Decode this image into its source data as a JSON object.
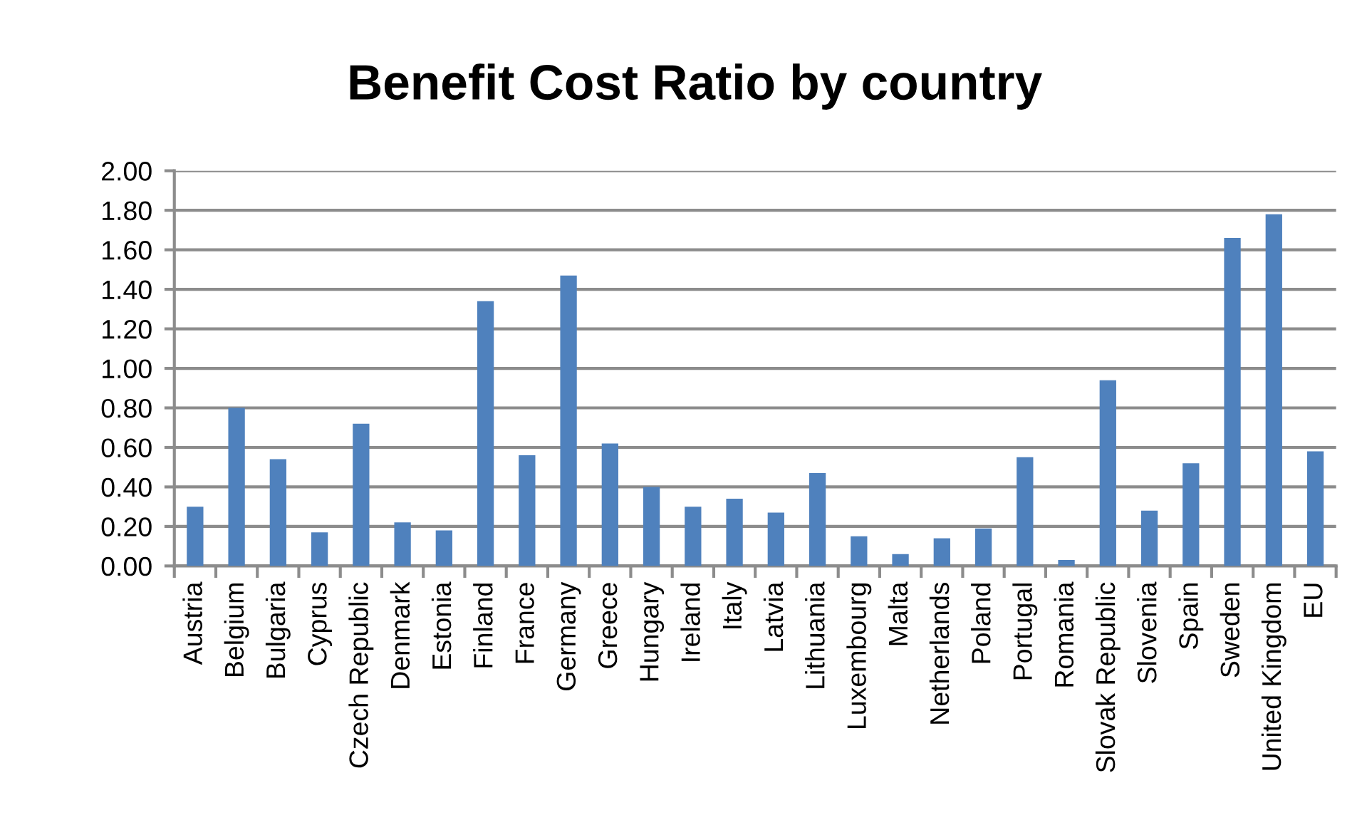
{
  "chart_data": {
    "type": "bar",
    "title": "Benefit Cost Ratio by country",
    "categories": [
      "Austria",
      "Belgium",
      "Bulgaria",
      "Cyprus",
      "Czech Republic",
      "Denmark",
      "Estonia",
      "Finland",
      "France",
      "Germany",
      "Greece",
      "Hungary",
      "Ireland",
      "Italy",
      "Latvia",
      "Lithuania",
      "Luxembourg",
      "Malta",
      "Netherlands",
      "Poland",
      "Portugal",
      "Romania",
      "Slovak Republic",
      "Slovenia",
      "Spain",
      "Sweden",
      "United Kingdom",
      "EU"
    ],
    "values": [
      0.3,
      0.8,
      0.54,
      0.17,
      0.72,
      0.22,
      0.18,
      1.34,
      0.56,
      1.47,
      0.62,
      0.4,
      0.3,
      0.34,
      0.27,
      0.47,
      0.15,
      0.06,
      0.14,
      0.19,
      0.55,
      0.03,
      0.94,
      0.28,
      0.52,
      1.66,
      1.78,
      0.58
    ],
    "color": "#4f81bd",
    "ylim": [
      0,
      2
    ],
    "yticks": [
      {
        "value": 0,
        "label": "0.00"
      },
      {
        "value": 0.2,
        "label": "0.20"
      },
      {
        "value": 0.4,
        "label": "0.40"
      },
      {
        "value": 0.6,
        "label": "0.60"
      },
      {
        "value": 0.8,
        "label": "0.80"
      },
      {
        "value": 1.0,
        "label": "1.00"
      },
      {
        "value": 1.2,
        "label": "1.20"
      },
      {
        "value": 1.4,
        "label": "1.40"
      },
      {
        "value": 1.6,
        "label": "1.60"
      },
      {
        "value": 1.8,
        "label": "1.80"
      },
      {
        "value": 2.0,
        "label": "2.00"
      }
    ],
    "grid": "y"
  }
}
